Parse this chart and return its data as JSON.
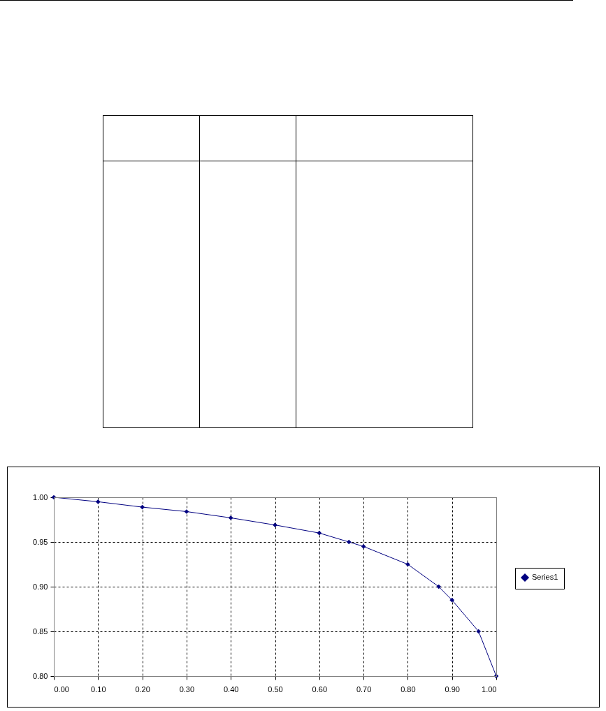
{
  "chart_data": {
    "type": "line",
    "x": [
      0,
      0.1,
      0.2,
      0.3,
      0.4,
      0.5,
      0.6,
      0.667,
      0.7,
      0.8,
      0.87,
      0.9,
      0.96,
      1.0
    ],
    "series": [
      {
        "name": "Series1",
        "color": "#000080",
        "values": [
          1.0,
          0.995,
          0.989,
          0.984,
          0.977,
          0.969,
          0.96,
          0.95,
          0.945,
          0.925,
          0.9,
          0.885,
          0.85,
          0.8
        ]
      }
    ],
    "xlim": [
      0,
      1
    ],
    "ylim": [
      0.8,
      1.0
    ],
    "xticks": [
      {
        "value": 0,
        "label": "0.00"
      },
      {
        "value": 0.1,
        "label": "0.10"
      },
      {
        "value": 0.2,
        "label": "0.20"
      },
      {
        "value": 0.3,
        "label": "0.30"
      },
      {
        "value": 0.4,
        "label": "0.40"
      },
      {
        "value": 0.5,
        "label": "0.50"
      },
      {
        "value": 0.6,
        "label": "0.60"
      },
      {
        "value": 0.7,
        "label": "0.70"
      },
      {
        "value": 0.8,
        "label": "0.80"
      },
      {
        "value": 0.9,
        "label": "0.90"
      },
      {
        "value": 1,
        "label": "1.00"
      }
    ],
    "yticks": [
      {
        "value": 0.8,
        "label": "0.80"
      },
      {
        "value": 0.85,
        "label": "0.85"
      },
      {
        "value": 0.9,
        "label": "0.90"
      },
      {
        "value": 0.95,
        "label": "0.95"
      },
      {
        "value": 1,
        "label": "1.00"
      }
    ],
    "grid": true,
    "legend": "right",
    "marker": "diamond",
    "line_style": "solid"
  }
}
